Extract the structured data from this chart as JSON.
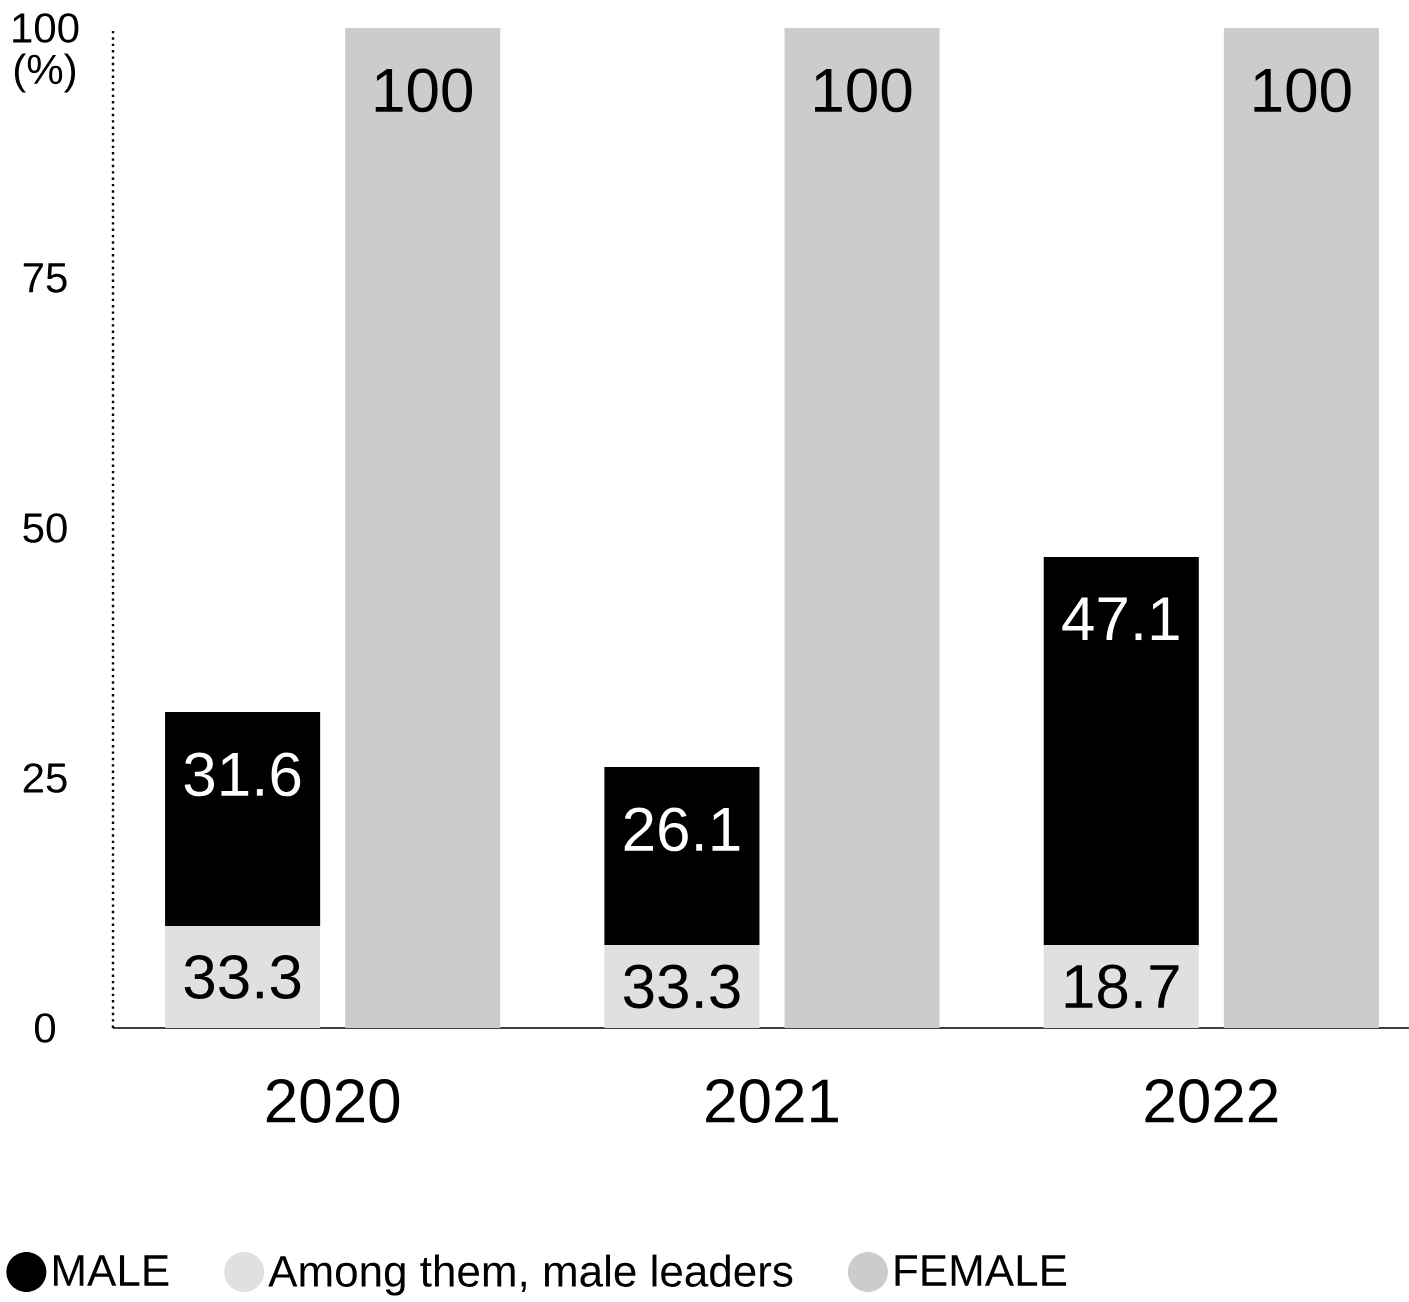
{
  "chart_data": {
    "type": "bar",
    "categories": [
      "2020",
      "2021",
      "2022"
    ],
    "ylabel": "(%)",
    "ylim": [
      0,
      100
    ],
    "yticks": [
      0,
      25,
      50,
      75,
      100
    ],
    "legend": "bottom",
    "series": [
      {
        "name": "MALE",
        "color": "#000000",
        "base": [
          10.2,
          8.3,
          8.3
        ],
        "values": [
          21.4,
          17.8,
          38.8
        ],
        "value_labels": [
          "31.6",
          "26.1",
          "47.1"
        ]
      },
      {
        "name": "Among them, male leaders",
        "color": "#e0e0e0",
        "values": [
          10.2,
          8.3,
          8.3
        ]
      },
      {
        "name": "FEMALE",
        "color": "#cccccc",
        "values": [
          100,
          100,
          100
        ],
        "value_labels": [
          "100",
          "100",
          "100"
        ]
      }
    ],
    "annotations": [
      "33.3",
      "33.3",
      "18.7"
    ]
  }
}
